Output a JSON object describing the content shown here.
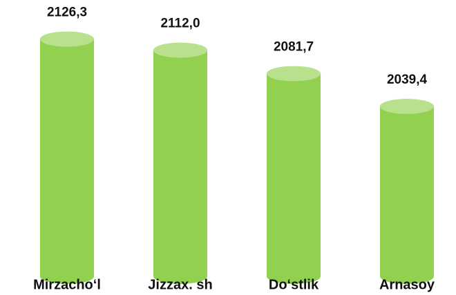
{
  "chart_data": {
    "type": "bar",
    "categories": [
      "Mirzacho‘l",
      "Jizzax. sh",
      "Do‘stlik",
      "Arnasoy"
    ],
    "values": [
      2126.3,
      2112.0,
      2081.7,
      2039.4
    ],
    "value_labels": [
      "2126,3",
      "2112,0",
      "2081,7",
      "2039,4"
    ],
    "color": "#92d050",
    "ylim": [
      1820,
      2150
    ]
  }
}
